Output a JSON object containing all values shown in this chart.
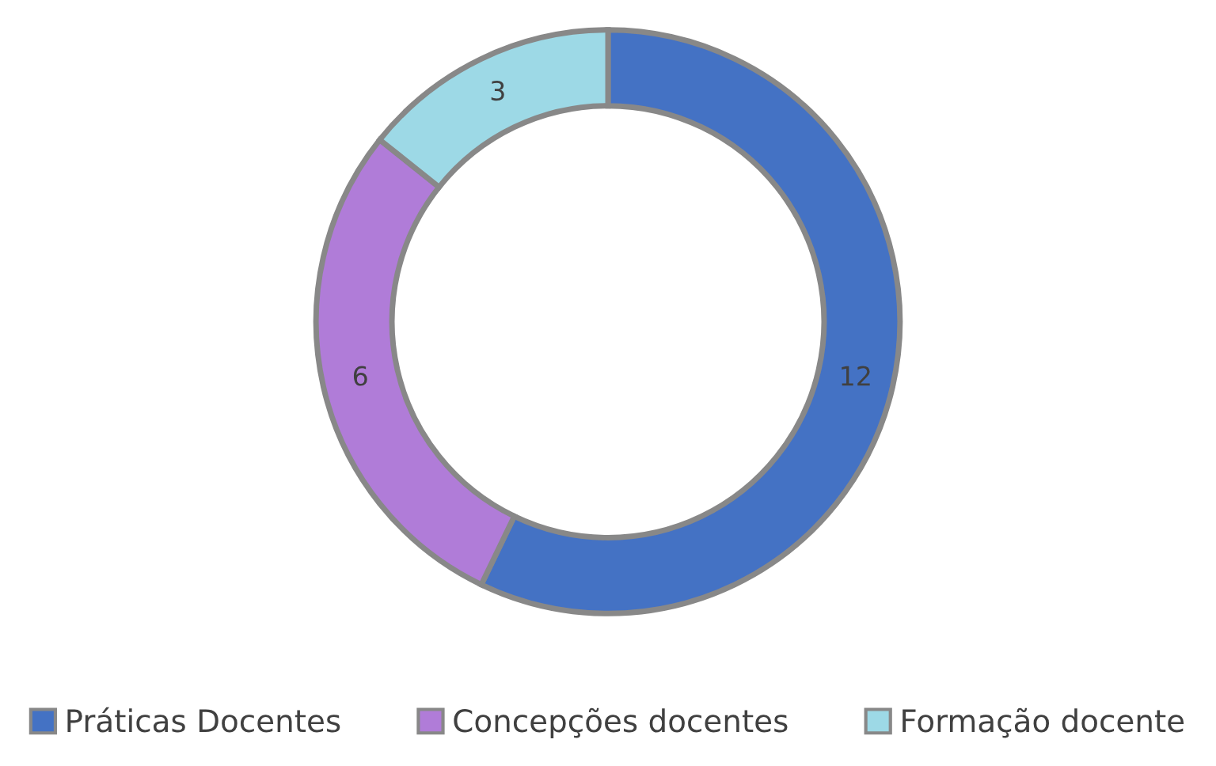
{
  "chart_data": {
    "type": "donut",
    "categories": [
      "Práticas Docentes",
      "Concepções docentes",
      "Formação docente"
    ],
    "values": [
      12,
      6,
      3
    ],
    "colors": [
      "#4472c4",
      "#b07cd8",
      "#9dd9e6"
    ],
    "data_labels": true,
    "legend": "bottom"
  }
}
